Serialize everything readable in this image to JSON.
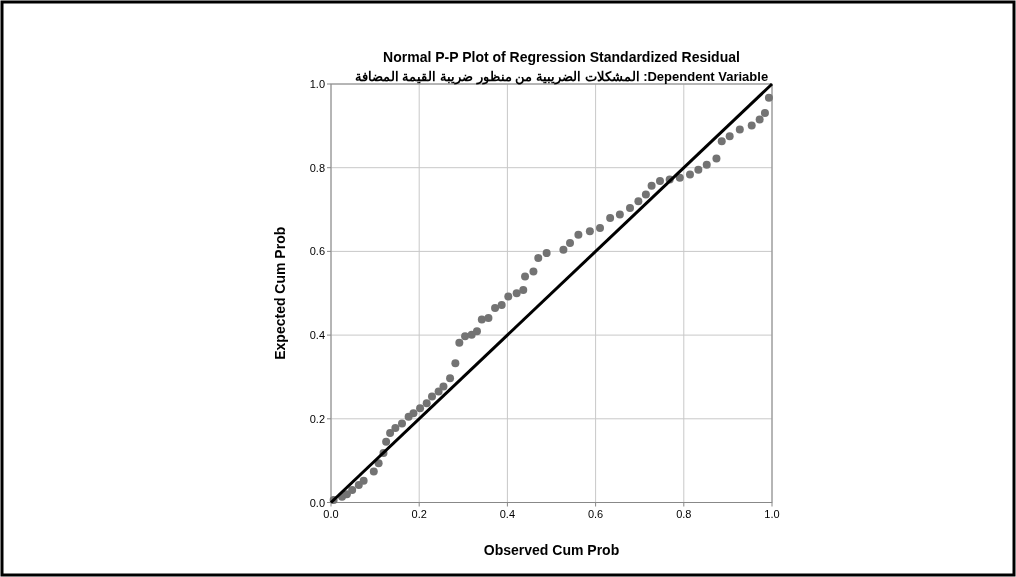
{
  "chart_data": {
    "type": "scatter",
    "title": "Normal P-P Plot of Regression Standardized Residual",
    "subtitle": "Dependent Variable: المشكلات الضريبية من منظور ضريبة القيمة المضافة",
    "xlabel": "Observed Cum Prob",
    "ylabel": "Expected Cum Prob",
    "xlim": [
      0,
      1
    ],
    "ylim": [
      0,
      1
    ],
    "xticks": [
      {
        "value": 0,
        "label": "0.0"
      },
      {
        "value": 0.2,
        "label": "0.2"
      },
      {
        "value": 0.4,
        "label": "0.4"
      },
      {
        "value": 0.6,
        "label": "0.6"
      },
      {
        "value": 0.8,
        "label": "0.8"
      },
      {
        "value": 1,
        "label": "1.0"
      }
    ],
    "yticks": [
      {
        "value": 0,
        "label": "0.0"
      },
      {
        "value": 0.2,
        "label": "0.2"
      },
      {
        "value": 0.4,
        "label": "0.4"
      },
      {
        "value": 0.6,
        "label": "0.6"
      },
      {
        "value": 0.8,
        "label": "0.8"
      },
      {
        "value": 1,
        "label": "1.0"
      }
    ],
    "grid": true,
    "series": [
      {
        "marker": "circle",
        "color": "#737373",
        "x": [
          0.006,
          0.025,
          0.036,
          0.048,
          0.063,
          0.074,
          0.097,
          0.108,
          0.119,
          0.125,
          0.134,
          0.146,
          0.161,
          0.176,
          0.187,
          0.202,
          0.217,
          0.229,
          0.244,
          0.255,
          0.27,
          0.282,
          0.291,
          0.304,
          0.319,
          0.331,
          0.342,
          0.357,
          0.372,
          0.387,
          0.402,
          0.421,
          0.436,
          0.44,
          0.459,
          0.47,
          0.489,
          0.527,
          0.542,
          0.561,
          0.587,
          0.61,
          0.633,
          0.655,
          0.678,
          0.697,
          0.714,
          0.727,
          0.746,
          0.768,
          0.791,
          0.814,
          0.833,
          0.852,
          0.874,
          0.886,
          0.904,
          0.927,
          0.954,
          0.972,
          0.984,
          0.993
        ],
        "values": [
          0.006,
          0.014,
          0.02,
          0.03,
          0.042,
          0.052,
          0.074,
          0.094,
          0.118,
          0.145,
          0.166,
          0.178,
          0.189,
          0.205,
          0.213,
          0.225,
          0.237,
          0.253,
          0.265,
          0.277,
          0.297,
          0.333,
          0.382,
          0.397,
          0.401,
          0.409,
          0.437,
          0.441,
          0.465,
          0.472,
          0.492,
          0.5,
          0.508,
          0.54,
          0.552,
          0.584,
          0.596,
          0.604,
          0.62,
          0.64,
          0.648,
          0.656,
          0.68,
          0.688,
          0.704,
          0.72,
          0.736,
          0.757,
          0.768,
          0.772,
          0.776,
          0.784,
          0.795,
          0.807,
          0.822,
          0.863,
          0.875,
          0.891,
          0.901,
          0.915,
          0.931,
          0.967
        ]
      },
      {
        "type": "line",
        "color": "#000000",
        "x": [
          0,
          1
        ],
        "values": [
          0,
          1
        ]
      }
    ]
  }
}
